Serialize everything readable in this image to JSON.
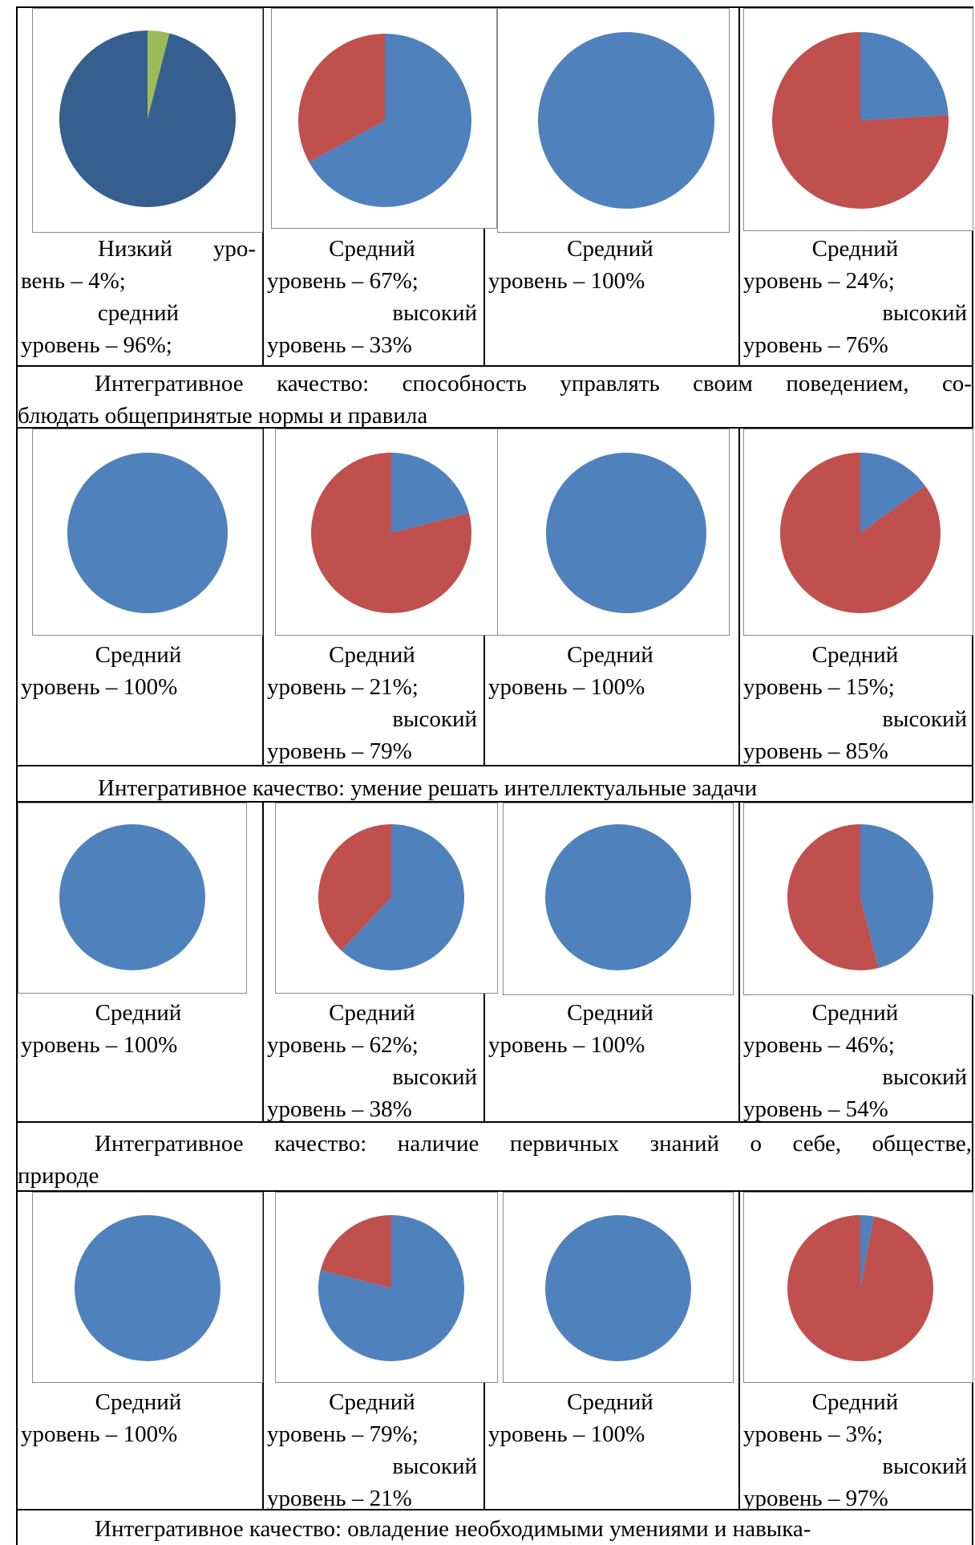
{
  "colors": {
    "dark_blue": "#355f8f",
    "blue": "#4f81bd",
    "red": "#c0504d",
    "green": "#9bbb59"
  },
  "rows": [
    {
      "cells": [
        {
          "chart": {
            "type": "pie",
            "slices": [
              {
                "value": 4,
                "color": "#9bbb59"
              },
              {
                "value": 96,
                "color": "#355f8f"
              }
            ]
          },
          "caption_lines": [
            "Низкий уро-",
            "вень – 4%;",
            "средний",
            "уровень – 96%;"
          ]
        },
        {
          "chart": {
            "type": "pie",
            "slices": [
              {
                "value": 67,
                "color": "#4f81bd"
              },
              {
                "value": 33,
                "color": "#c0504d"
              }
            ]
          },
          "caption_lines": [
            "Средний",
            "уровень – 67%;",
            "высокий",
            "уровень – 33%"
          ]
        },
        {
          "chart": {
            "type": "pie",
            "slices": [
              {
                "value": 100,
                "color": "#4f81bd"
              }
            ]
          },
          "caption_lines": [
            "Средний",
            "уровень – 100%"
          ]
        },
        {
          "chart": {
            "type": "pie",
            "slices": [
              {
                "value": 24,
                "color": "#4f81bd"
              },
              {
                "value": 76,
                "color": "#c0504d"
              }
            ]
          },
          "caption_lines": [
            "Средний",
            "уровень – 24%;",
            "высокий",
            "уровень – 76%"
          ]
        }
      ],
      "quality_lines": [
        "Интегративное качество: способность управлять своим поведением, со-",
        "блюдать общепринятые нормы и правила"
      ]
    },
    {
      "cells": [
        {
          "chart": {
            "type": "pie",
            "slices": [
              {
                "value": 100,
                "color": "#4f81bd"
              }
            ]
          },
          "caption_lines": [
            "Средний",
            "уровень – 100%"
          ]
        },
        {
          "chart": {
            "type": "pie",
            "slices": [
              {
                "value": 21,
                "color": "#4f81bd"
              },
              {
                "value": 79,
                "color": "#c0504d"
              }
            ]
          },
          "caption_lines": [
            "Средний",
            "уровень – 21%;",
            "высокий",
            "уровень – 79%"
          ]
        },
        {
          "chart": {
            "type": "pie",
            "slices": [
              {
                "value": 100,
                "color": "#4f81bd"
              }
            ]
          },
          "caption_lines": [
            "Средний",
            "уровень – 100%"
          ]
        },
        {
          "chart": {
            "type": "pie",
            "slices": [
              {
                "value": 15,
                "color": "#4f81bd"
              },
              {
                "value": 85,
                "color": "#c0504d"
              }
            ]
          },
          "caption_lines": [
            "Средний",
            "уровень – 15%;",
            "высокий",
            "уровень – 85%"
          ]
        }
      ],
      "quality_lines": [
        "Интегративное качество: умение решать интеллектуальные задачи"
      ]
    },
    {
      "cells": [
        {
          "chart": {
            "type": "pie",
            "slices": [
              {
                "value": 100,
                "color": "#4f81bd"
              }
            ]
          },
          "caption_lines": [
            "Средний",
            "уровень – 100%"
          ]
        },
        {
          "chart": {
            "type": "pie",
            "slices": [
              {
                "value": 62,
                "color": "#4f81bd"
              },
              {
                "value": 38,
                "color": "#c0504d"
              }
            ]
          },
          "caption_lines": [
            "Средний",
            "уровень – 62%;",
            "высокий",
            "уровень – 38%"
          ]
        },
        {
          "chart": {
            "type": "pie",
            "slices": [
              {
                "value": 100,
                "color": "#4f81bd"
              }
            ]
          },
          "caption_lines": [
            "Средний",
            "уровень – 100%"
          ]
        },
        {
          "chart": {
            "type": "pie",
            "slices": [
              {
                "value": 46,
                "color": "#4f81bd"
              },
              {
                "value": 54,
                "color": "#c0504d"
              }
            ]
          },
          "caption_lines": [
            "Средний",
            "уровень – 46%;",
            "высокий",
            "уровень – 54%"
          ]
        }
      ],
      "quality_lines": [
        "Интегративное качество: наличие первичных знаний о себе, обществе,",
        "природе"
      ]
    },
    {
      "cells": [
        {
          "chart": {
            "type": "pie",
            "slices": [
              {
                "value": 100,
                "color": "#4f81bd"
              }
            ]
          },
          "caption_lines": [
            "Средний",
            "уровень – 100%"
          ]
        },
        {
          "chart": {
            "type": "pie",
            "slices": [
              {
                "value": 79,
                "color": "#4f81bd"
              },
              {
                "value": 21,
                "color": "#c0504d"
              }
            ]
          },
          "caption_lines": [
            "Средний",
            "уровень – 79%;",
            "высокий",
            "уровень – 21%"
          ]
        },
        {
          "chart": {
            "type": "pie",
            "slices": [
              {
                "value": 100,
                "color": "#4f81bd"
              }
            ]
          },
          "caption_lines": [
            "Средний",
            "уровень – 100%"
          ]
        },
        {
          "chart": {
            "type": "pie",
            "slices": [
              {
                "value": 3,
                "color": "#4f81bd"
              },
              {
                "value": 97,
                "color": "#c0504d"
              }
            ]
          },
          "caption_lines": [
            "Средний",
            "уровень – 3%;",
            "высокий",
            "уровень – 97%"
          ]
        }
      ],
      "quality_lines": [
        "Интегративное качество: овладение необходимыми умениями и навыка-"
      ]
    }
  ]
}
